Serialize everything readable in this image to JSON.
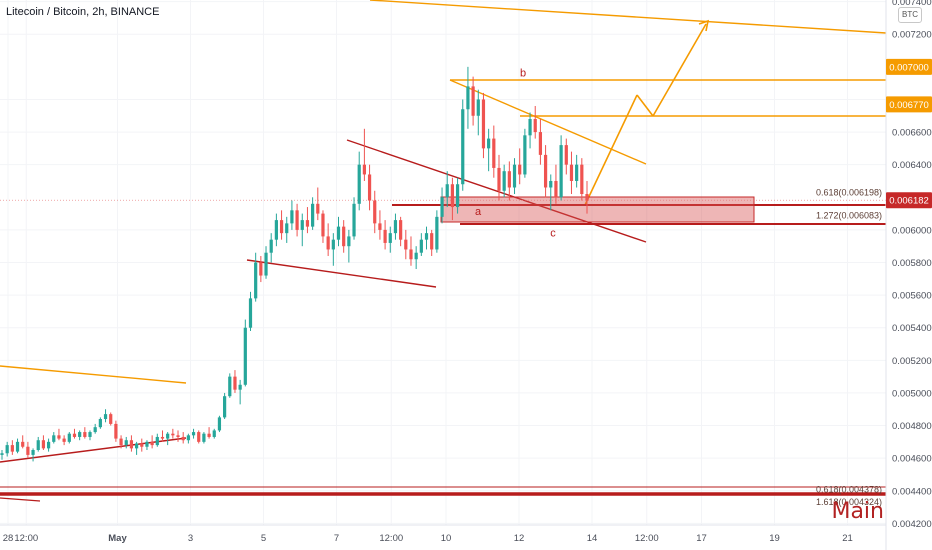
{
  "chart_data": {
    "type": "candlestick",
    "title": "Litecoin / Bitcoin, 2h, BINANCE",
    "watermark": "Main",
    "currency_button": "BTC",
    "ylim": [
      0.00419,
      0.00741
    ],
    "y_ticks": [
      "0.007400",
      "0.007200",
      "0.006800",
      "0.006600",
      "0.006400",
      "0.006000",
      "0.005800",
      "0.005600",
      "0.005400",
      "0.005200",
      "0.005000",
      "0.004800",
      "0.004600",
      "0.004400",
      "0.004200"
    ],
    "x_ticks": [
      "28",
      "12:00",
      "May",
      "3",
      "5",
      "7",
      "12:00",
      "10",
      "12",
      "14",
      "12:00",
      "17",
      "19",
      "21"
    ],
    "price_labels": [
      {
        "text": "0.007000",
        "value": 0.007,
        "color": "#f59b00"
      },
      {
        "text": "0.006770",
        "value": 0.00677,
        "color": "#f59b00"
      },
      {
        "text": "0.006182",
        "value": 0.006182,
        "color": "#c62828"
      }
    ],
    "fib_labels": [
      {
        "text": "0.618(0.006198)",
        "value": 0.006198
      },
      {
        "text": "1.272(0.006083)",
        "value": 0.006083
      },
      {
        "text": "0.618(0.004378)",
        "value": 0.004378
      },
      {
        "text": "1.618(0.004324)",
        "value": 0.004324
      }
    ],
    "wave_labels": [
      {
        "text": "b",
        "x_day": 11.75,
        "value": 0.00694
      },
      {
        "text": "a",
        "x_day": 9.75,
        "value": 0.00609
      },
      {
        "text": "c",
        "x_day": 12.9,
        "value": 0.00596
      }
    ],
    "candles": [
      [
        0.00462,
        0.00465,
        0.00459,
        0.00463
      ],
      [
        0.00463,
        0.0047,
        0.00461,
        0.00468
      ],
      [
        0.00468,
        0.00471,
        0.00462,
        0.00464
      ],
      [
        0.00464,
        0.00472,
        0.00463,
        0.0047
      ],
      [
        0.0047,
        0.00474,
        0.00466,
        0.00467
      ],
      [
        0.00467,
        0.0047,
        0.0046,
        0.00462
      ],
      [
        0.00462,
        0.00466,
        0.00458,
        0.00465
      ],
      [
        0.00465,
        0.00473,
        0.00464,
        0.00471
      ],
      [
        0.00471,
        0.00474,
        0.00465,
        0.00466
      ],
      [
        0.00466,
        0.00472,
        0.00464,
        0.0047
      ],
      [
        0.0047,
        0.00476,
        0.00469,
        0.00474
      ],
      [
        0.00474,
        0.00478,
        0.00471,
        0.00472
      ],
      [
        0.00472,
        0.00474,
        0.00468,
        0.0047
      ],
      [
        0.0047,
        0.00476,
        0.00469,
        0.00475
      ],
      [
        0.00475,
        0.00478,
        0.00472,
        0.00473
      ],
      [
        0.00473,
        0.00477,
        0.00471,
        0.00476
      ],
      [
        0.00476,
        0.00479,
        0.00472,
        0.00473
      ],
      [
        0.00473,
        0.00477,
        0.00471,
        0.00476
      ],
      [
        0.00476,
        0.00481,
        0.00475,
        0.00479
      ],
      [
        0.00479,
        0.00485,
        0.00478,
        0.00484
      ],
      [
        0.00484,
        0.0049,
        0.00482,
        0.00487
      ],
      [
        0.00487,
        0.00488,
        0.0048,
        0.00481
      ],
      [
        0.00481,
        0.00483,
        0.0047,
        0.00472
      ],
      [
        0.00472,
        0.00474,
        0.00466,
        0.00468
      ],
      [
        0.00468,
        0.00473,
        0.00466,
        0.00471
      ],
      [
        0.00471,
        0.00474,
        0.00464,
        0.00466
      ],
      [
        0.00466,
        0.0047,
        0.00462,
        0.00469
      ],
      [
        0.00469,
        0.00472,
        0.00464,
        0.00467
      ],
      [
        0.00467,
        0.00471,
        0.00465,
        0.0047
      ],
      [
        0.0047,
        0.00474,
        0.00466,
        0.00468
      ],
      [
        0.00468,
        0.00475,
        0.00467,
        0.00473
      ],
      [
        0.00473,
        0.00477,
        0.0047,
        0.00472
      ],
      [
        0.00472,
        0.00476,
        0.00468,
        0.00475
      ],
      [
        0.00475,
        0.00478,
        0.00472,
        0.00474
      ],
      [
        0.00474,
        0.00477,
        0.0047,
        0.00473
      ],
      [
        0.00473,
        0.00476,
        0.00469,
        0.00471
      ],
      [
        0.00471,
        0.00475,
        0.00469,
        0.00474
      ],
      [
        0.00474,
        0.00478,
        0.00472,
        0.00476
      ],
      [
        0.00476,
        0.00477,
        0.00469,
        0.0047
      ],
      [
        0.0047,
        0.00476,
        0.00469,
        0.00475
      ],
      [
        0.00475,
        0.00479,
        0.00472,
        0.00473
      ],
      [
        0.00473,
        0.00478,
        0.00472,
        0.00477
      ],
      [
        0.00477,
        0.00486,
        0.00476,
        0.00485
      ],
      [
        0.00485,
        0.005,
        0.00484,
        0.00498
      ],
      [
        0.00498,
        0.00512,
        0.00497,
        0.0051
      ],
      [
        0.0051,
        0.00514,
        0.005,
        0.00502
      ],
      [
        0.00502,
        0.00508,
        0.00493,
        0.00505
      ],
      [
        0.00505,
        0.00545,
        0.00504,
        0.0054
      ],
      [
        0.0054,
        0.00562,
        0.00538,
        0.00558
      ],
      [
        0.00558,
        0.00586,
        0.00556,
        0.0058
      ],
      [
        0.0058,
        0.00584,
        0.00568,
        0.00572
      ],
      [
        0.00572,
        0.0059,
        0.0057,
        0.00586
      ],
      [
        0.00586,
        0.00598,
        0.0058,
        0.00594
      ],
      [
        0.00594,
        0.0061,
        0.0059,
        0.00606
      ],
      [
        0.00606,
        0.00612,
        0.00594,
        0.00598
      ],
      [
        0.00598,
        0.00608,
        0.00592,
        0.00604
      ],
      [
        0.00604,
        0.00618,
        0.006,
        0.00612
      ],
      [
        0.00612,
        0.00616,
        0.00596,
        0.006
      ],
      [
        0.006,
        0.0061,
        0.0059,
        0.00606
      ],
      [
        0.00606,
        0.00614,
        0.00598,
        0.00602
      ],
      [
        0.00602,
        0.0062,
        0.006,
        0.00616
      ],
      [
        0.00616,
        0.00626,
        0.00606,
        0.0061
      ],
      [
        0.0061,
        0.00612,
        0.00592,
        0.00596
      ],
      [
        0.00596,
        0.00604,
        0.00584,
        0.00588
      ],
      [
        0.00588,
        0.00598,
        0.00578,
        0.00594
      ],
      [
        0.00594,
        0.00608,
        0.0059,
        0.00602
      ],
      [
        0.00602,
        0.00606,
        0.00586,
        0.0059
      ],
      [
        0.0059,
        0.006,
        0.0058,
        0.00596
      ],
      [
        0.00596,
        0.0062,
        0.00594,
        0.00616
      ],
      [
        0.00616,
        0.00648,
        0.00612,
        0.0064
      ],
      [
        0.0064,
        0.00662,
        0.0063,
        0.00634
      ],
      [
        0.00634,
        0.0064,
        0.00612,
        0.00618
      ],
      [
        0.00618,
        0.00624,
        0.00598,
        0.00604
      ],
      [
        0.00604,
        0.00612,
        0.00594,
        0.006
      ],
      [
        0.006,
        0.00606,
        0.00588,
        0.00592
      ],
      [
        0.00592,
        0.00602,
        0.00586,
        0.00598
      ],
      [
        0.00598,
        0.0061,
        0.00594,
        0.00606
      ],
      [
        0.00606,
        0.00608,
        0.0059,
        0.00594
      ],
      [
        0.00594,
        0.006,
        0.00582,
        0.00588
      ],
      [
        0.00588,
        0.00596,
        0.00578,
        0.00582
      ],
      [
        0.00582,
        0.0059,
        0.00576,
        0.00586
      ],
      [
        0.00586,
        0.00598,
        0.00584,
        0.00594
      ],
      [
        0.00594,
        0.00602,
        0.00588,
        0.00598
      ],
      [
        0.00598,
        0.006,
        0.00584,
        0.00588
      ],
      [
        0.00588,
        0.00612,
        0.00586,
        0.00608
      ],
      [
        0.00608,
        0.00626,
        0.00604,
        0.0062
      ],
      [
        0.0062,
        0.00636,
        0.00614,
        0.00628
      ],
      [
        0.00628,
        0.00632,
        0.00606,
        0.00614
      ],
      [
        0.00614,
        0.00632,
        0.0061,
        0.00628
      ],
      [
        0.00628,
        0.0068,
        0.00624,
        0.00674
      ],
      [
        0.00674,
        0.007,
        0.00662,
        0.00688
      ],
      [
        0.00688,
        0.00694,
        0.00664,
        0.0067
      ],
      [
        0.0067,
        0.00686,
        0.00658,
        0.0068
      ],
      [
        0.0068,
        0.00684,
        0.00644,
        0.0065
      ],
      [
        0.0065,
        0.00662,
        0.00636,
        0.00656
      ],
      [
        0.00656,
        0.00664,
        0.00632,
        0.00638
      ],
      [
        0.00638,
        0.00646,
        0.00618,
        0.00624
      ],
      [
        0.00624,
        0.0064,
        0.0062,
        0.00636
      ],
      [
        0.00636,
        0.00642,
        0.00618,
        0.00626
      ],
      [
        0.00626,
        0.00644,
        0.00622,
        0.0064
      ],
      [
        0.0064,
        0.0065,
        0.00628,
        0.00634
      ],
      [
        0.00634,
        0.00662,
        0.00632,
        0.00658
      ],
      [
        0.00658,
        0.00672,
        0.0065,
        0.00668
      ],
      [
        0.00668,
        0.00676,
        0.00656,
        0.0066
      ],
      [
        0.0066,
        0.00668,
        0.0064,
        0.00646
      ],
      [
        0.00646,
        0.00652,
        0.0062,
        0.00626
      ],
      [
        0.00626,
        0.00634,
        0.00612,
        0.0063
      ],
      [
        0.0063,
        0.0064,
        0.00616,
        0.0062
      ],
      [
        0.0062,
        0.00658,
        0.00618,
        0.00652
      ],
      [
        0.00652,
        0.00656,
        0.00634,
        0.0064
      ],
      [
        0.0064,
        0.00648,
        0.00622,
        0.0063
      ],
      [
        0.0063,
        0.00646,
        0.00626,
        0.0064
      ],
      [
        0.0064,
        0.00644,
        0.00618,
        0.00622
      ],
      [
        0.00622,
        0.0063,
        0.0061,
        0.00618
      ]
    ]
  }
}
